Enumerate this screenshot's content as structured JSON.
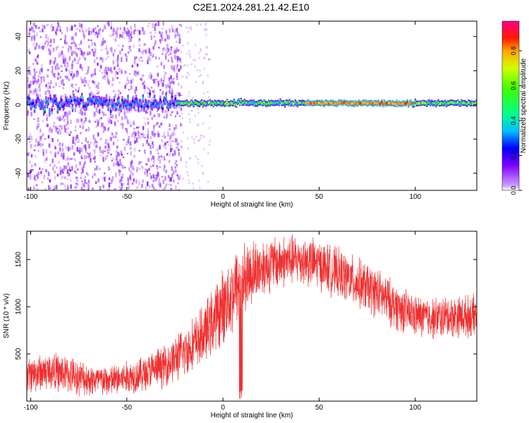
{
  "figure_title": "C2E1.2024.281.21.42.E10",
  "chart_data": [
    {
      "type": "heatmap",
      "xlabel": "Height of straight line (km)",
      "ylabel": "Frequency (Hz)",
      "xlim": [
        -102,
        132
      ],
      "ylim": [
        -50,
        49
      ],
      "xticks": [
        -100,
        -50,
        0,
        50,
        100
      ],
      "yticks": [
        -40,
        -20,
        0,
        20,
        40
      ],
      "colorbar": {
        "label": "Normalized spectral amplitude",
        "range": [
          0.0,
          0.97
        ],
        "ticks": [
          0.0,
          0.2,
          0.4,
          0.6,
          0.8
        ],
        "colormap": "rainbow (purple to magenta)"
      },
      "features": [
        {
          "description": "scattered purple noise",
          "x_range": [
            -102,
            -22
          ],
          "freq_range": [
            -50,
            49
          ],
          "amplitude": 0.05
        },
        {
          "description": "main tone band",
          "x_range": [
            -102,
            132
          ],
          "freq": 1,
          "amplitude_range": [
            0.3,
            0.95
          ]
        },
        {
          "description": "peak red segments",
          "x_range": [
            42,
            98
          ],
          "freq": 1,
          "amplitude": 0.9
        }
      ]
    },
    {
      "type": "line",
      "xlabel": "Height of straight line (km)",
      "ylabel": "SNR (10 * v/v)",
      "xlim": [
        -102,
        132
      ],
      "ylim": [
        0,
        1800
      ],
      "xticks": [
        -100,
        -50,
        0,
        50,
        100
      ],
      "yticks": [
        500,
        1000,
        1500
      ],
      "color": "#ef3030",
      "series": [
        {
          "x": [
            -102,
            -90,
            -80,
            -70,
            -60,
            -50,
            -40,
            -30,
            -20,
            -10,
            0,
            5,
            10,
            20,
            30,
            40,
            50,
            60,
            70,
            80,
            90,
            100,
            110,
            120,
            132
          ],
          "y": [
            280,
            320,
            280,
            230,
            210,
            250,
            300,
            380,
            520,
            700,
            1000,
            1150,
            1300,
            1420,
            1480,
            1500,
            1450,
            1350,
            1250,
            1150,
            1000,
            900,
            880,
            900,
            900
          ],
          "spread": [
            220,
            230,
            220,
            200,
            190,
            200,
            220,
            250,
            300,
            350,
            450,
            500,
            450,
            350,
            320,
            300,
            300,
            300,
            300,
            300,
            280,
            250,
            250,
            250,
            250
          ]
        }
      ]
    }
  ]
}
